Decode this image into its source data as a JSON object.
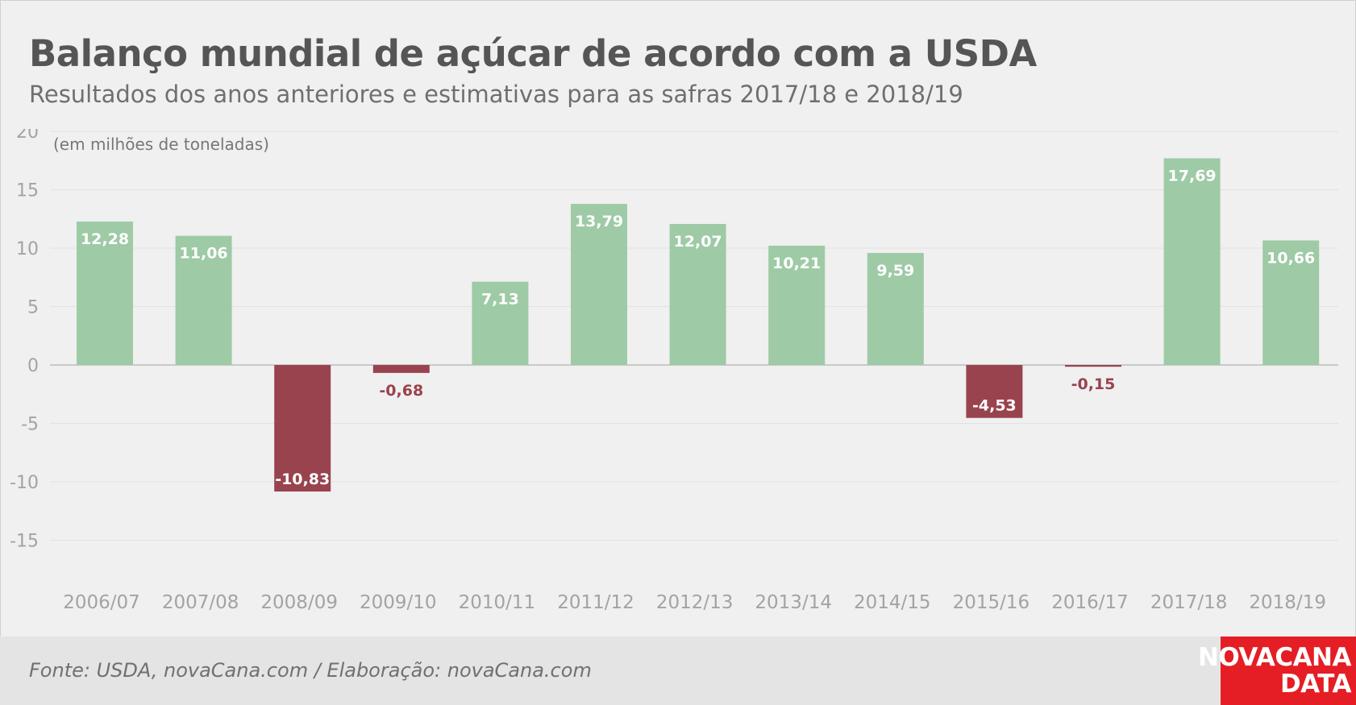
{
  "header": {
    "title": "Balanço mundial de açúcar de acordo com a USDA",
    "subtitle": "Resultados dos anos anteriores e estimativas para as safras 2017/18 e 2018/19"
  },
  "chart_data": {
    "type": "bar",
    "unit_note": "(em milhões de toneladas)",
    "categories": [
      "2006/07",
      "2007/08",
      "2008/09",
      "2009/10",
      "2010/11",
      "2011/12",
      "2012/13",
      "2013/14",
      "2014/15",
      "2015/16",
      "2016/17",
      "2017/18",
      "2018/19"
    ],
    "values": [
      12.28,
      11.06,
      -10.83,
      -0.68,
      7.13,
      13.79,
      12.07,
      10.21,
      9.59,
      -4.53,
      -0.15,
      17.69,
      10.66
    ],
    "value_labels": [
      "12,28",
      "11,06",
      "-10,83",
      "-0,68",
      "7,13",
      "13,79",
      "12,07",
      "10,21",
      "9,59",
      "-4,53",
      "-0,15",
      "17,69",
      "10,66"
    ],
    "y_ticks": [
      20,
      15,
      10,
      5,
      0,
      -5,
      -10,
      -15
    ],
    "ylim": [
      -17,
      20
    ],
    "grid": true,
    "legend": "none",
    "colors": {
      "positive": "#9ecaa6",
      "negative": "#99434e"
    }
  },
  "footer": {
    "source": "Fonte: USDA, novaCana.com / Elaboração: novaCana.com",
    "logo_line1": "NOVACANA",
    "logo_line2": "DATA"
  }
}
